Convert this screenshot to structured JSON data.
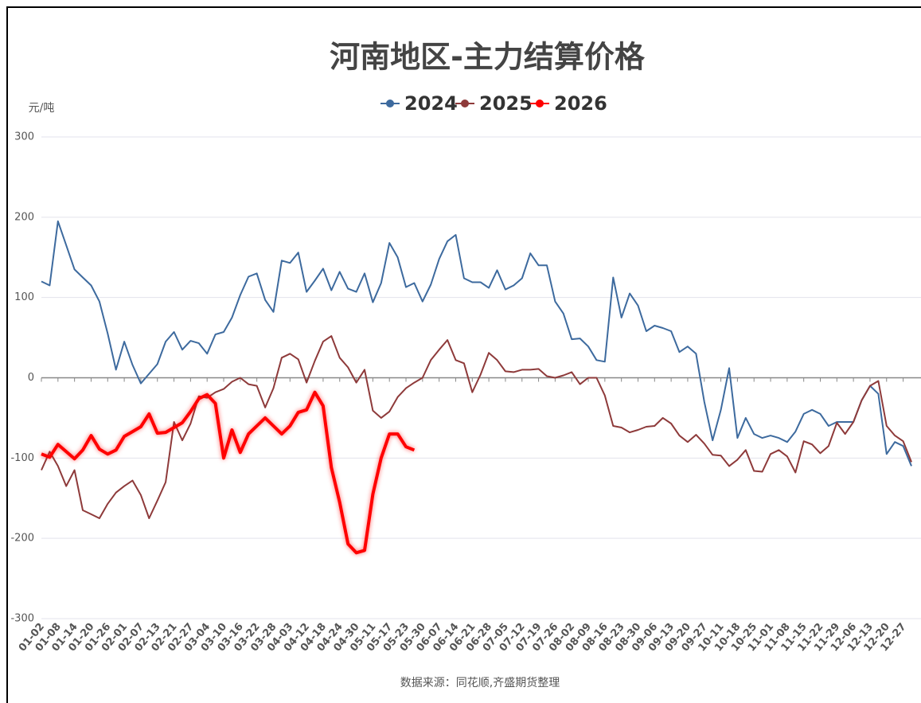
{
  "chart_data": {
    "type": "line",
    "title": "河南地区-主力结算价格",
    "y_label": "元/吨",
    "source": "数据来源：同花顺,齐盛期货整理",
    "categories": [
      "01-02",
      null,
      "01-08",
      null,
      "01-14",
      null,
      "01-20",
      null,
      "01-26",
      null,
      "02-01",
      null,
      "02-07",
      null,
      "02-13",
      null,
      "02-21",
      null,
      "02-27",
      null,
      "03-04",
      null,
      "03-10",
      null,
      "03-16",
      null,
      "03-22",
      null,
      "03-28",
      null,
      "04-03",
      null,
      "04-12",
      null,
      "04-18",
      null,
      "04-24",
      null,
      "04-30",
      null,
      "05-11",
      null,
      "05-17",
      null,
      "05-23",
      null,
      "05-30",
      null,
      "06-07",
      null,
      "06-14",
      null,
      "06-21",
      null,
      "06-28",
      null,
      "07-05",
      null,
      "07-12",
      null,
      "07-19",
      null,
      "07-26",
      null,
      "08-02",
      null,
      "08-09",
      null,
      "08-16",
      null,
      "08-23",
      null,
      "08-30",
      null,
      "09-06",
      null,
      "09-13",
      null,
      "09-20",
      null,
      "09-27",
      null,
      "10-11",
      null,
      "10-18",
      null,
      "10-25",
      null,
      "11-01",
      null,
      "11-08",
      null,
      "11-15",
      null,
      "11-22",
      null,
      "11-29",
      null,
      "12-06",
      null,
      "12-13",
      null,
      "12-20",
      null,
      "12-27",
      null
    ],
    "series": [
      {
        "name": "2024",
        "color": "#3d6a9e",
        "width": 2,
        "values": [
          120,
          115,
          195,
          165,
          135,
          125,
          115,
          95,
          55,
          10,
          45,
          16,
          -7,
          5,
          17,
          45,
          57,
          35,
          46,
          43,
          30,
          54,
          57,
          75,
          103,
          126,
          130,
          97,
          82,
          146,
          143,
          156,
          107,
          121,
          136,
          109,
          132,
          111,
          107,
          130,
          94,
          118,
          168,
          150,
          113,
          118,
          95,
          116,
          148,
          170,
          178,
          124,
          119,
          119,
          112,
          134,
          110,
          115,
          124,
          155,
          140,
          140,
          95,
          80,
          48,
          49,
          39,
          22,
          20,
          125,
          75,
          105,
          90,
          58,
          65,
          62,
          58,
          32,
          39,
          30,
          -30,
          -78,
          -40,
          12,
          -75,
          -50,
          -70,
          -75,
          -72,
          -75,
          -80,
          -67,
          -45,
          -40,
          -45,
          -60,
          -55,
          -55,
          -55,
          -28,
          -10,
          -20,
          -95,
          -80,
          -85,
          -110
        ]
      },
      {
        "name": "2025",
        "color": "#8e3a3a",
        "width": 2,
        "values": [
          -115,
          -92,
          -110,
          -135,
          -115,
          -165,
          -170,
          -175,
          -157,
          -143,
          -135,
          -128,
          -146,
          -175,
          -153,
          -130,
          -55,
          -78,
          -57,
          -23,
          -25,
          -18,
          -14,
          -5,
          0,
          -8,
          -10,
          -37,
          -13,
          25,
          30,
          23,
          -6,
          21,
          45,
          52,
          25,
          13,
          -6,
          10,
          -41,
          -50,
          -42,
          -24,
          -13,
          -6,
          0,
          22,
          35,
          47,
          22,
          18,
          -18,
          4,
          31,
          22,
          8,
          7,
          10,
          10,
          11,
          2,
          0,
          3,
          7,
          -8,
          0,
          0,
          -22,
          -60,
          -62,
          -68,
          -65,
          -61,
          -60,
          -50,
          -57,
          -72,
          -80,
          -71,
          -82,
          -96,
          -97,
          -110,
          -102,
          -90,
          -116,
          -117,
          -95,
          -90,
          -98,
          -118,
          -79,
          -83,
          -94,
          -85,
          -56,
          -70,
          -55,
          -28,
          -10,
          -4,
          -60,
          -72,
          -79,
          -105
        ]
      },
      {
        "name": "2026",
        "color": "#ff0000",
        "width": 4,
        "values": [
          -95,
          -99,
          -83,
          -92,
          -101,
          -90,
          -72,
          -89,
          -95,
          -90,
          -73,
          -67,
          -61,
          -45,
          -69,
          -68,
          -62,
          -56,
          -42,
          -26,
          -21,
          -32,
          -100,
          -65,
          -93,
          -70,
          -60,
          -50,
          -60,
          -70,
          -60,
          -43,
          -40,
          -18,
          -35,
          -112,
          -155,
          -207,
          -218,
          -215,
          -145,
          -100,
          -70,
          -70,
          -86,
          -90,
          null,
          null,
          null,
          null,
          null,
          null,
          null,
          null,
          null,
          null,
          null,
          null,
          null,
          null,
          null,
          null,
          null,
          null,
          null,
          null,
          null,
          null,
          null,
          null,
          null,
          null,
          null,
          null,
          null,
          null,
          null,
          null,
          null,
          null,
          null,
          null,
          null,
          null,
          null,
          null,
          null,
          null,
          null,
          null,
          null,
          null,
          null,
          null,
          null,
          null,
          null,
          null,
          null,
          null,
          null,
          null,
          null,
          null,
          null,
          null
        ]
      }
    ],
    "ylim": [
      -300,
      300
    ],
    "yticks": [
      -300,
      -200,
      -100,
      0,
      100,
      200,
      300
    ],
    "grid": true
  }
}
